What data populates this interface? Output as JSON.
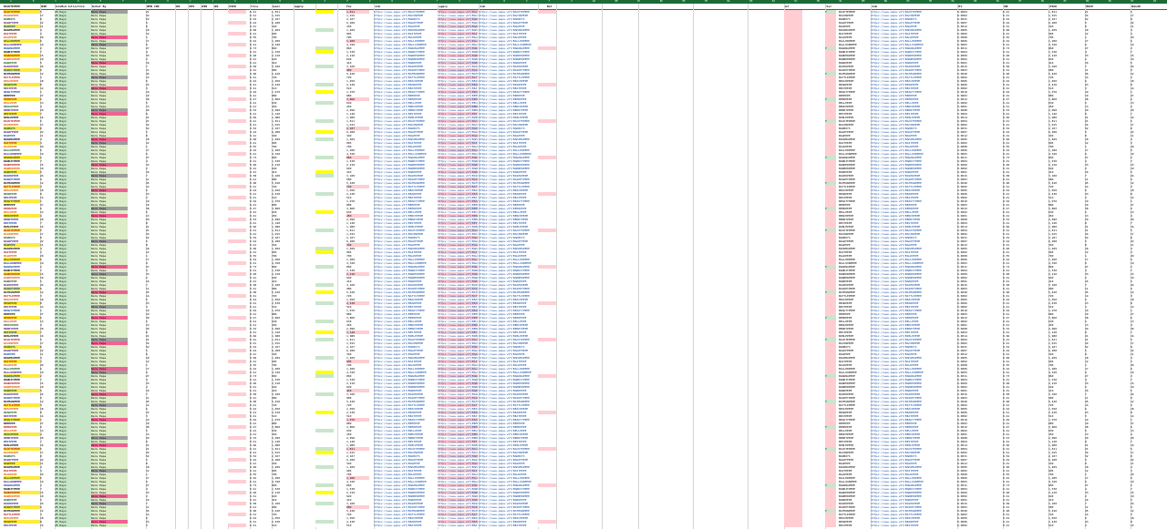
{
  "app": {
    "header_row": {
      "a": "BACKTEPEPE",
      "b": "HIDE",
      "c": "BoleMod Collection",
      "d": "Market By",
      "e": "REMS CON",
      "f": "BOS",
      "g": "CNTS",
      "h": "SPIN",
      "i": "DOS",
      "j": "STOCK",
      "k": "Price",
      "l": "Resel",
      "m": "Supply",
      "n": "Fav",
      "o": "Link",
      "p": "Legacy",
      "q": "Link",
      "r": "Rel",
      "s": "Ref",
      "t": "Tier",
      "u": "Link",
      "v": "BTC",
      "w": "EUR",
      "x": "STOCK",
      "y": "PRICE",
      "z": "DOLLAR"
    },
    "selected_cell": ""
  },
  "rows": [
    {
      "name": "BACKTEPEPE",
      "b": "5",
      "c": "25 Days",
      "d": "Rare Pepe",
      "e": "21",
      "k": "0.41",
      "n": "1,811",
      "link": "https://www.pepe.wtf/BACKTEPEPE",
      "btc": "0.0004",
      "tier": "Y",
      "name2": "BACKTEPEPE"
    },
    {
      "name": "BACONPEPE",
      "b": "17",
      "c": "25 Days",
      "d": "Rare Pepe",
      "e": "34",
      "k": "0.41",
      "n": "1,015",
      "link": "https://www.pepe.wtf/BACONPEPE",
      "btc": "0.0002",
      "tier": "",
      "name2": "BACONPEPE"
    },
    {
      "name": "BADBOYS",
      "b": "8",
      "c": "25 Days",
      "d": "Rare Pepe",
      "e": "52",
      "k": "0.52",
      "n": "2,107",
      "link": "https://www.pepe.wtf/BADBOYS",
      "btc": "0.0031",
      "tier": "",
      "name2": "BADBOYS"
    },
    {
      "name": "BAGOFPEPE",
      "b": "22",
      "c": "25 Days",
      "d": "Rare Pepe",
      "e": "5",
      "k": "0.44",
      "n": "6,208",
      "link": "https://www.pepe.wtf/BAGOFPEPE",
      "btc": "0.0007",
      "tier": "",
      "name2": "BAGOFPEPE"
    },
    {
      "name": "BAGPEPE",
      "b": "11",
      "c": "25 Days",
      "d": "Rare Pepe",
      "e": "8",
      "k": "0.41",
      "n": "340",
      "link": "https://www.pepe.wtf/BAGPEPE",
      "btc": "0.0012",
      "tier": "",
      "name2": "BAGPEPE"
    },
    {
      "name": "BAHAMAPEPE",
      "b": "4",
      "c": "25 Days",
      "d": "Rare Pepe",
      "e": "18",
      "k": "0.60",
      "n": "1,409",
      "link": "https://www.pepe.wtf/BAHAMAPEPE",
      "btc": "0.0005",
      "tier": "",
      "name2": "BAHAMAPEPE"
    },
    {
      "name": "BAITPEPE",
      "b": "3",
      "c": "25 Days",
      "d": "Rare Pepe",
      "e": "12",
      "k": "0.41",
      "n": "905",
      "link": "https://www.pepe.wtf/BAITPEPE",
      "btc": "0.0002",
      "tier": "",
      "name2": "BAITPEPE"
    },
    {
      "name": "BALDPEPE",
      "b": "29",
      "c": "25 Days",
      "d": "Rare Pepe",
      "e": "1",
      "k": "0.55",
      "n": "700",
      "link": "https://www.pepe.wtf/BALDPEPE",
      "btc": "0.0008",
      "tier": "",
      "name2": "BALDPEPE"
    },
    {
      "name": "BALLERPEPE",
      "b": "6",
      "c": "25 Days",
      "d": "Rare Pepe",
      "e": "17",
      "k": "0.42",
      "n": "1,200",
      "link": "https://www.pepe.wtf/BALLERPEPE",
      "btc": "0.0006",
      "tier": "",
      "name2": "BALLERPEPE"
    },
    {
      "name": "BALLOONPEPE",
      "b": "19",
      "c": "25 Days",
      "d": "Rare Pepe",
      "e": "9",
      "k": "0.41",
      "n": "4,320",
      "link": "https://www.pepe.wtf/BALLOONPEPE",
      "btc": "0.0003",
      "tier": "",
      "name2": "BALLOONPEPE"
    },
    {
      "name": "BANANAPEPE",
      "b": "2",
      "c": "25 Days",
      "d": "Rare Pepe",
      "e": "27",
      "k": "0.73",
      "n": "860",
      "link": "https://www.pepe.wtf/BANANAPEPE",
      "btc": "0.0011",
      "tier": "Y",
      "name2": "BANANAPEPE"
    },
    {
      "name": "BANDITPEPE",
      "b": "7",
      "c": "25 Days",
      "d": "Rare Pepe",
      "e": "4",
      "k": "0.41",
      "n": "1,530",
      "link": "https://www.pepe.wtf/BANDITPEPE",
      "btc": "0.0004",
      "tier": "",
      "name2": "BANDITPEPE"
    },
    {
      "name": "BANKERPEPE",
      "b": "15",
      "c": "25 Days",
      "d": "Rare Pepe",
      "e": "33",
      "k": "0.48",
      "n": "2,210",
      "link": "https://www.pepe.wtf/BANKERPEPE",
      "btc": "0.0009",
      "tier": "",
      "name2": "BANKERPEPE"
    },
    {
      "name": "BARBERPEPE",
      "b": "10",
      "c": "25 Days",
      "d": "Rare Pepe",
      "e": "2",
      "k": "0.41",
      "n": "640",
      "link": "https://www.pepe.wtf/BARBERPEPE",
      "btc": "0.0002",
      "tier": "",
      "name2": "BARBERPEPE"
    },
    {
      "name": "BARDPEPE",
      "b": "5",
      "c": "25 Days",
      "d": "Rare Pepe",
      "e": "16",
      "k": "0.41",
      "n": "410",
      "link": "https://www.pepe.wtf/BARDPEPE",
      "btc": "0.0001",
      "tier": "",
      "name2": "BARDPEPE"
    },
    {
      "name": "BASEDPEPE",
      "b": "24",
      "c": "25 Days",
      "d": "Rare Pepe",
      "e": "7",
      "k": "0.58",
      "n": "3,100",
      "link": "https://www.pepe.wtf/BASEDPEPE",
      "btc": "0.0015",
      "tier": "",
      "name2": "BASEDPEPE"
    },
    {
      "name": "BASKETPEPE",
      "b": "9",
      "c": "25 Days",
      "d": "Rare Pepe",
      "e": "11",
      "k": "0.41",
      "n": "980",
      "link": "https://www.pepe.wtf/BASKETPEPE",
      "btc": "0.0003",
      "tier": "",
      "name2": "BASKETPEPE"
    },
    {
      "name": "BATMANPEPE",
      "b": "12",
      "c": "25 Days",
      "d": "Rare Pepe",
      "e": "45",
      "k": "0.90",
      "n": "5,420",
      "link": "https://www.pepe.wtf/BATMANPEPE",
      "btc": "0.0040",
      "tier": "Y",
      "name2": "BATMANPEPE"
    },
    {
      "name": "BATTLEPEPE",
      "b": "3",
      "c": "25 Days",
      "d": "Rare Pepe",
      "e": "14",
      "k": "0.41",
      "n": "720",
      "link": "https://www.pepe.wtf/BATTLEPEPE",
      "btc": "0.0002",
      "tier": "",
      "name2": "BATTLEPEPE"
    },
    {
      "name": "BEACHPEPE",
      "b": "18",
      "c": "25 Days",
      "d": "Rare Pepe",
      "e": "6",
      "k": "0.44",
      "n": "1,650",
      "link": "https://www.pepe.wtf/BEACHPEPE",
      "btc": "0.0005",
      "tier": "",
      "name2": "BEACHPEPE"
    },
    {
      "name": "BEARPEPE",
      "b": "8",
      "c": "25 Days",
      "d": "Rare Pepe",
      "e": "23",
      "k": "0.41",
      "n": "2,430",
      "link": "https://www.pepe.wtf/BEARPEPE",
      "btc": "0.0006",
      "tier": "",
      "name2": "BEARPEPE"
    },
    {
      "name": "BEATPEPE",
      "b": "14",
      "c": "25 Days",
      "d": "Rare Pepe",
      "e": "3",
      "k": "0.41",
      "n": "510",
      "link": "https://www.pepe.wtf/BEATPEPE",
      "btc": "0.0002",
      "tier": "",
      "name2": "BEATPEPE"
    },
    {
      "name": "BEAUTYPEPE",
      "b": "1",
      "c": "25 Days",
      "d": "Rare Pepe",
      "e": "19",
      "k": "0.62",
      "n": "1,070",
      "link": "https://www.pepe.wtf/BEAUTYPEPE",
      "btc": "0.0010",
      "tier": "",
      "name2": "BEAUTYPEPE"
    },
    {
      "name": "BEEPEPE",
      "b": "27",
      "c": "25 Days",
      "d": "Rare Pepe",
      "e": "10",
      "k": "0.41",
      "n": "880",
      "link": "https://www.pepe.wtf/BEEPEPE",
      "btc": "0.0003",
      "tier": "",
      "name2": "BEEPEPE"
    },
    {
      "name": "BEERPEPE",
      "b": "6",
      "c": "25 Days",
      "d": "Rare Pepe",
      "e": "38",
      "k": "0.47",
      "n": "3,860",
      "link": "https://www.pepe.wtf/BEERPEPE",
      "btc": "0.0012",
      "tier": "Y",
      "name2": "BEERPEPE"
    },
    {
      "name": "BELLPEPE",
      "b": "13",
      "c": "25 Days",
      "d": "Rare Pepe",
      "e": "5",
      "k": "0.41",
      "n": "630",
      "link": "https://www.pepe.wtf/BELLPEPE",
      "btc": "0.0002",
      "tier": "",
      "name2": "BELLPEPE"
    },
    {
      "name": "BENCHPEPE",
      "b": "4",
      "c": "25 Days",
      "d": "Rare Pepe",
      "e": "13",
      "k": "0.41",
      "n": "450",
      "link": "https://www.pepe.wtf/BENCHPEPE",
      "btc": "0.0001",
      "tier": "",
      "name2": "BENCHPEPE"
    },
    {
      "name": "BERRYPEPE",
      "b": "20",
      "c": "25 Days",
      "d": "Rare Pepe",
      "e": "29",
      "k": "0.53",
      "n": "2,090",
      "link": "https://www.pepe.wtf/BERRYPEPE",
      "btc": "0.0008",
      "tier": "",
      "name2": "BERRYPEPE"
    },
    {
      "name": "BESTPEPE",
      "b": "7",
      "c": "25 Days",
      "d": "Rare Pepe",
      "e": "8",
      "k": "0.41",
      "n": "1,140",
      "link": "https://www.pepe.wtf/BESTPEPE",
      "btc": "0.0004",
      "tier": "",
      "name2": "BESTPEPE"
    },
    {
      "name": "BIBLEPEPE",
      "b": "16",
      "c": "25 Days",
      "d": "Rare Pepe",
      "e": "21",
      "k": "0.66",
      "n": "1,980",
      "link": "https://www.pepe.wtf/BIBLEPEPE",
      "btc": "0.0014",
      "tier": "",
      "name2": "BIBLEPEPE"
    }
  ]
}
